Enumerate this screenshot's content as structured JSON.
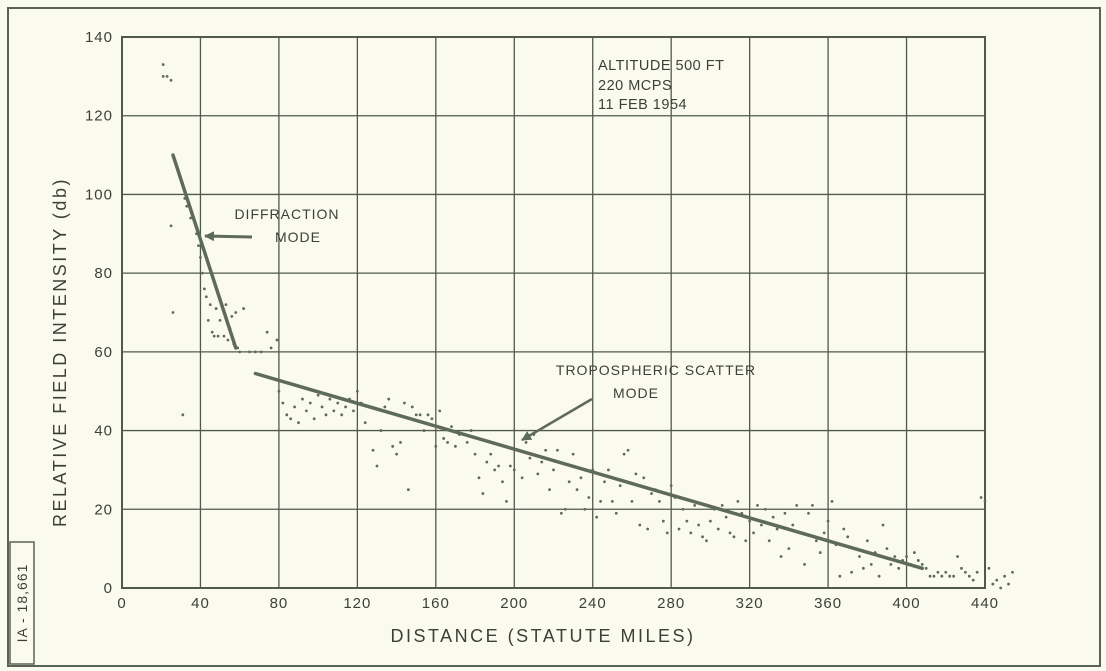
{
  "figure_id": "IA - 18,661",
  "conditions": [
    "ALTITUDE 500 FT",
    "220 MCPS",
    "11 FEB 1954"
  ],
  "chart_data": {
    "type": "scatter",
    "xlabel": "DISTANCE (STATUTE MILES)",
    "ylabel": "RELATIVE FIELD INTENSITY (db)",
    "xlim": [
      0,
      440
    ],
    "ylim": [
      0,
      140
    ],
    "x_ticks": [
      0,
      40,
      80,
      120,
      160,
      200,
      240,
      280,
      320,
      360,
      400,
      440
    ],
    "y_ticks": [
      0,
      20,
      40,
      60,
      80,
      100,
      120,
      140
    ],
    "x_tick_labels": [
      "0",
      "40",
      "80",
      "120",
      "160",
      "200",
      "240",
      "280",
      "320",
      "360",
      "400",
      "440"
    ],
    "y_tick_labels": [
      "0",
      "20",
      "40",
      "60",
      "80",
      "100",
      "120",
      "140"
    ],
    "grid": true,
    "color": "#5f6b5a",
    "fit_lines": [
      {
        "label": "DIFFRACTION MODE",
        "x": [
          26,
          58
        ],
        "y": [
          110,
          61
        ]
      },
      {
        "label": "TROPOSPHERIC SCATTER MODE",
        "x": [
          68,
          408
        ],
        "y": [
          54.5,
          5
        ]
      }
    ],
    "annotations": [
      {
        "lines": [
          "DIFFRACTION",
          "MODE"
        ],
        "points_to": [
          42,
          89
        ]
      },
      {
        "lines": [
          "TROPOSPHERIC SCATTER",
          "MODE"
        ],
        "points_to": [
          200,
          36
        ]
      }
    ],
    "points": [
      [
        21,
        133
      ],
      [
        21,
        130
      ],
      [
        23,
        130
      ],
      [
        25,
        129
      ],
      [
        25,
        92
      ],
      [
        26,
        70
      ],
      [
        31,
        44
      ],
      [
        32,
        99
      ],
      [
        33,
        97
      ],
      [
        35,
        94
      ],
      [
        37,
        93
      ],
      [
        38,
        90
      ],
      [
        39,
        87
      ],
      [
        40,
        84
      ],
      [
        41,
        80
      ],
      [
        42,
        76
      ],
      [
        43,
        74
      ],
      [
        44,
        68
      ],
      [
        45,
        72
      ],
      [
        46,
        65
      ],
      [
        47,
        64
      ],
      [
        48,
        71
      ],
      [
        49,
        64
      ],
      [
        50,
        68
      ],
      [
        51,
        72
      ],
      [
        52,
        64
      ],
      [
        53,
        72
      ],
      [
        54,
        63
      ],
      [
        55,
        66
      ],
      [
        56,
        69
      ],
      [
        57,
        62
      ],
      [
        58,
        70
      ],
      [
        59,
        61
      ],
      [
        60,
        60
      ],
      [
        62,
        71
      ],
      [
        65,
        60
      ],
      [
        68,
        60
      ],
      [
        71,
        60
      ],
      [
        74,
        65
      ],
      [
        76,
        61
      ],
      [
        79,
        63
      ],
      [
        80,
        50
      ],
      [
        82,
        47
      ],
      [
        84,
        44
      ],
      [
        86,
        43
      ],
      [
        88,
        46
      ],
      [
        90,
        42
      ],
      [
        92,
        48
      ],
      [
        94,
        45
      ],
      [
        96,
        47
      ],
      [
        98,
        43
      ],
      [
        100,
        49
      ],
      [
        102,
        46
      ],
      [
        104,
        44
      ],
      [
        106,
        48
      ],
      [
        108,
        45
      ],
      [
        110,
        47
      ],
      [
        112,
        44
      ],
      [
        114,
        46
      ],
      [
        116,
        48
      ],
      [
        118,
        45
      ],
      [
        120,
        50
      ],
      [
        122,
        47
      ],
      [
        124,
        42
      ],
      [
        126,
        46
      ],
      [
        128,
        35
      ],
      [
        130,
        31
      ],
      [
        132,
        40
      ],
      [
        134,
        46
      ],
      [
        136,
        48
      ],
      [
        138,
        36
      ],
      [
        140,
        34
      ],
      [
        142,
        37
      ],
      [
        144,
        47
      ],
      [
        146,
        25
      ],
      [
        148,
        46
      ],
      [
        150,
        44
      ],
      [
        152,
        44
      ],
      [
        154,
        40
      ],
      [
        156,
        44
      ],
      [
        158,
        43
      ],
      [
        160,
        36
      ],
      [
        162,
        45
      ],
      [
        164,
        38
      ],
      [
        166,
        37
      ],
      [
        168,
        41
      ],
      [
        170,
        36
      ],
      [
        172,
        39
      ],
      [
        174,
        39
      ],
      [
        176,
        37
      ],
      [
        178,
        40
      ],
      [
        180,
        34
      ],
      [
        182,
        28
      ],
      [
        184,
        24
      ],
      [
        186,
        32
      ],
      [
        188,
        34
      ],
      [
        190,
        30
      ],
      [
        192,
        31
      ],
      [
        194,
        27
      ],
      [
        196,
        22
      ],
      [
        198,
        31
      ],
      [
        200,
        30
      ],
      [
        202,
        35
      ],
      [
        204,
        28
      ],
      [
        206,
        37
      ],
      [
        208,
        33
      ],
      [
        210,
        39
      ],
      [
        212,
        29
      ],
      [
        214,
        32
      ],
      [
        216,
        35
      ],
      [
        218,
        25
      ],
      [
        220,
        30
      ],
      [
        222,
        35
      ],
      [
        224,
        19
      ],
      [
        226,
        20
      ],
      [
        228,
        27
      ],
      [
        230,
        34
      ],
      [
        232,
        25
      ],
      [
        234,
        28
      ],
      [
        236,
        20
      ],
      [
        238,
        23
      ],
      [
        240,
        30
      ],
      [
        242,
        18
      ],
      [
        244,
        22
      ],
      [
        246,
        27
      ],
      [
        248,
        30
      ],
      [
        250,
        22
      ],
      [
        252,
        19
      ],
      [
        254,
        26
      ],
      [
        256,
        34
      ],
      [
        258,
        35
      ],
      [
        260,
        22
      ],
      [
        262,
        29
      ],
      [
        264,
        16
      ],
      [
        266,
        28
      ],
      [
        268,
        15
      ],
      [
        270,
        24
      ],
      [
        272,
        25
      ],
      [
        274,
        22
      ],
      [
        276,
        17
      ],
      [
        278,
        14
      ],
      [
        280,
        26
      ],
      [
        282,
        23
      ],
      [
        284,
        15
      ],
      [
        286,
        20
      ],
      [
        288,
        17
      ],
      [
        290,
        14
      ],
      [
        292,
        21
      ],
      [
        294,
        16
      ],
      [
        296,
        13
      ],
      [
        298,
        12
      ],
      [
        300,
        17
      ],
      [
        302,
        20
      ],
      [
        304,
        15
      ],
      [
        306,
        21
      ],
      [
        308,
        18
      ],
      [
        310,
        14
      ],
      [
        312,
        13
      ],
      [
        314,
        22
      ],
      [
        316,
        19
      ],
      [
        318,
        12
      ],
      [
        320,
        17
      ],
      [
        322,
        14
      ],
      [
        324,
        21
      ],
      [
        326,
        16
      ],
      [
        328,
        20
      ],
      [
        330,
        12
      ],
      [
        332,
        18
      ],
      [
        334,
        15
      ],
      [
        336,
        8
      ],
      [
        338,
        19
      ],
      [
        340,
        10
      ],
      [
        342,
        16
      ],
      [
        344,
        21
      ],
      [
        346,
        14
      ],
      [
        348,
        6
      ],
      [
        350,
        19
      ],
      [
        352,
        21
      ],
      [
        354,
        12
      ],
      [
        356,
        9
      ],
      [
        358,
        14
      ],
      [
        360,
        17
      ],
      [
        362,
        22
      ],
      [
        364,
        11
      ],
      [
        366,
        3
      ],
      [
        368,
        15
      ],
      [
        370,
        13
      ],
      [
        372,
        4
      ],
      [
        374,
        10
      ],
      [
        376,
        8
      ],
      [
        378,
        5
      ],
      [
        380,
        12
      ],
      [
        382,
        6
      ],
      [
        384,
        9
      ],
      [
        386,
        3
      ],
      [
        388,
        16
      ],
      [
        390,
        10
      ],
      [
        392,
        6
      ],
      [
        394,
        8
      ],
      [
        396,
        5
      ],
      [
        398,
        7
      ],
      [
        400,
        8
      ],
      [
        402,
        6
      ],
      [
        404,
        9
      ],
      [
        406,
        7
      ],
      [
        408,
        6
      ],
      [
        410,
        5
      ],
      [
        412,
        3
      ],
      [
        414,
        3
      ],
      [
        416,
        4
      ],
      [
        418,
        3
      ],
      [
        420,
        4
      ],
      [
        422,
        3
      ],
      [
        424,
        3
      ],
      [
        426,
        8
      ],
      [
        428,
        5
      ],
      [
        430,
        4
      ],
      [
        432,
        3
      ],
      [
        434,
        2
      ],
      [
        436,
        4
      ],
      [
        438,
        23
      ],
      [
        440,
        22
      ],
      [
        442,
        5
      ],
      [
        444,
        1
      ],
      [
        446,
        2
      ],
      [
        448,
        0
      ],
      [
        450,
        3
      ],
      [
        452,
        1
      ],
      [
        454,
        4
      ]
    ]
  }
}
